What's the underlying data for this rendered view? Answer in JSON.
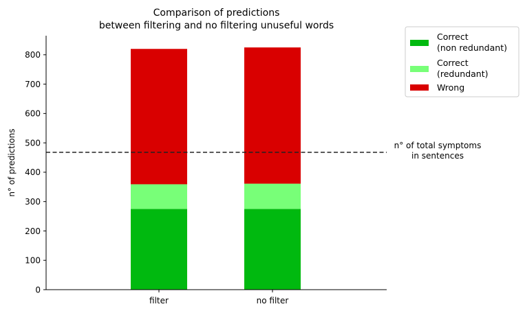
{
  "chart_data": {
    "type": "bar",
    "stacked": true,
    "title": [
      "Comparison of predictions",
      "between filtering and no filtering unuseful words"
    ],
    "xlabel": "",
    "ylabel": "n° of predictions",
    "categories": [
      "filter",
      "no filter"
    ],
    "ylim": [
      0,
      865
    ],
    "yticks": [
      0,
      100,
      200,
      300,
      400,
      500,
      600,
      700,
      800
    ],
    "series": [
      {
        "name": [
          "Correct",
          "(non redundant)"
        ],
        "values": [
          275,
          275
        ],
        "color": "#00b90f"
      },
      {
        "name": [
          "Correct",
          "(redundant)"
        ],
        "values": [
          84,
          86
        ],
        "color": "#78ff78"
      },
      {
        "name": [
          "Wrong"
        ],
        "values": [
          461,
          464
        ],
        "color": "#d90000"
      }
    ],
    "reference_line": {
      "value": 468,
      "label": [
        "n° of total symptoms",
        "in sentences"
      ],
      "style": "dashed",
      "color": "#222222"
    },
    "legend_position": "outside-top-right",
    "grid": false
  }
}
